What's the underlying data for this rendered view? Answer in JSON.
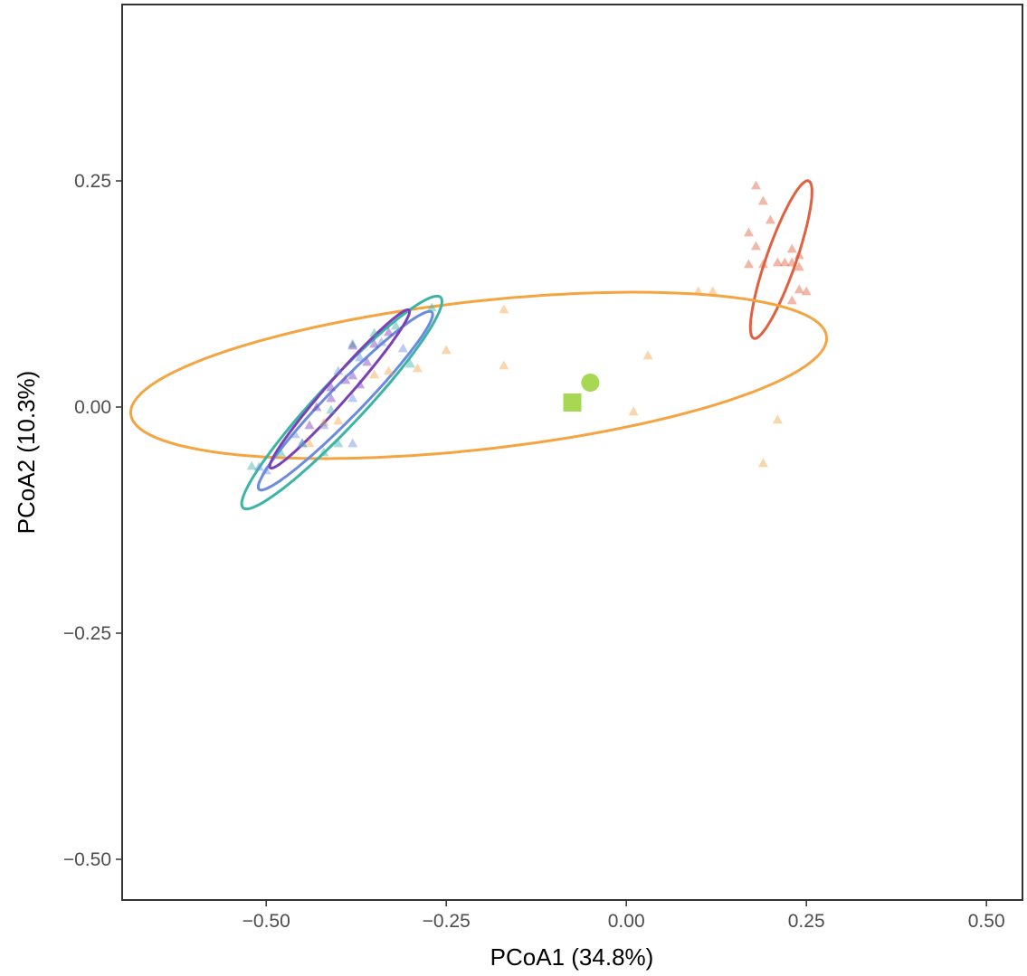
{
  "chart_data": {
    "type": "scatter",
    "title": "",
    "xlabel": "PCoA1 (34.8%)",
    "ylabel": "PCoA2 (10.3%)",
    "xlim": [
      -0.7,
      0.55
    ],
    "ylim": [
      -0.545,
      0.445
    ],
    "x_ticks": [
      {
        "value": -0.5,
        "label": "−0.50"
      },
      {
        "value": -0.25,
        "label": "−0.25"
      },
      {
        "value": 0.0,
        "label": "0.00"
      },
      {
        "value": 0.25,
        "label": "0.25"
      },
      {
        "value": 0.5,
        "label": "0.50"
      }
    ],
    "y_ticks": [
      {
        "value": 0.25,
        "label": "0.25"
      },
      {
        "value": 0.0,
        "label": "0.00"
      },
      {
        "value": -0.25,
        "label": "−0.25"
      },
      {
        "value": -0.5,
        "label": "−0.50"
      }
    ],
    "grid": false,
    "legend": "none",
    "marker_shape": "triangle",
    "series": [
      {
        "color": "#e0603f",
        "points": [
          [
            0.18,
            0.245
          ],
          [
            0.19,
            0.228
          ],
          [
            0.2,
            0.207
          ],
          [
            0.17,
            0.193
          ],
          [
            0.18,
            0.178
          ],
          [
            0.23,
            0.175
          ],
          [
            0.24,
            0.168
          ],
          [
            0.21,
            0.16
          ],
          [
            0.22,
            0.16
          ],
          [
            0.23,
            0.16
          ],
          [
            0.24,
            0.155
          ],
          [
            0.17,
            0.158
          ],
          [
            0.19,
            0.158
          ],
          [
            0.24,
            0.13
          ],
          [
            0.25,
            0.128
          ],
          [
            0.23,
            0.118
          ]
        ],
        "ellipse": {
          "cx": 0.215,
          "cy": 0.163,
          "rx": 0.095,
          "ry": 0.02,
          "angle_deg": 66
        }
      },
      {
        "color": "#f5a442",
        "points": [
          [
            0.1,
            0.128
          ],
          [
            0.12,
            0.128
          ],
          [
            -0.17,
            0.108
          ],
          [
            -0.25,
            0.063
          ],
          [
            -0.17,
            0.046
          ],
          [
            0.03,
            0.057
          ],
          [
            -0.29,
            0.043
          ],
          [
            -0.33,
            0.04
          ],
          [
            -0.35,
            0.036
          ],
          [
            -0.4,
            -0.015
          ],
          [
            -0.42,
            -0.017
          ],
          [
            0.01,
            -0.005
          ],
          [
            0.21,
            -0.014
          ],
          [
            0.19,
            -0.062
          ],
          [
            -0.44,
            -0.04
          ]
        ],
        "ellipse": {
          "cx": -0.205,
          "cy": 0.035,
          "rx": 0.485,
          "ry": 0.082,
          "angle_deg": 5
        }
      },
      {
        "color": "#3bb4a5",
        "points": [
          [
            -0.27,
            0.11
          ],
          [
            -0.32,
            0.09
          ],
          [
            -0.35,
            0.082
          ],
          [
            -0.3,
            0.048
          ],
          [
            -0.38,
            0.07
          ],
          [
            -0.41,
            -0.003
          ],
          [
            -0.45,
            -0.04
          ],
          [
            -0.48,
            -0.05
          ],
          [
            -0.52,
            -0.065
          ],
          [
            -0.42,
            -0.05
          ],
          [
            -0.4,
            -0.04
          ]
        ],
        "ellipse": {
          "cx": -0.395,
          "cy": 0.005,
          "rx": 0.18,
          "ry": 0.028,
          "angle_deg": 40
        }
      },
      {
        "color": "#6b8be0",
        "points": [
          [
            -0.34,
            0.072
          ],
          [
            -0.31,
            0.065
          ],
          [
            -0.37,
            0.055
          ],
          [
            -0.4,
            0.04
          ],
          [
            -0.38,
            0.01
          ],
          [
            -0.42,
            -0.02
          ],
          [
            -0.45,
            -0.04
          ],
          [
            -0.5,
            -0.07
          ],
          [
            -0.51,
            -0.066
          ],
          [
            -0.38,
            -0.04
          ],
          [
            -0.46,
            -0.03
          ]
        ],
        "ellipse": {
          "cx": -0.39,
          "cy": 0.007,
          "rx": 0.155,
          "ry": 0.02,
          "angle_deg": 39
        }
      },
      {
        "color": "#7b3fb8",
        "points": [
          [
            -0.38,
            0.068
          ],
          [
            -0.35,
            0.07
          ],
          [
            -0.36,
            0.05
          ],
          [
            -0.38,
            0.035
          ],
          [
            -0.39,
            0.03
          ],
          [
            -0.37,
            0.025
          ],
          [
            -0.41,
            0.01
          ],
          [
            -0.43,
            0.0
          ],
          [
            -0.44,
            -0.02
          ],
          [
            -0.41,
            0.022
          ],
          [
            -0.33,
            0.083
          ]
        ],
        "ellipse": {
          "cx": -0.398,
          "cy": 0.02,
          "rx": 0.13,
          "ry": 0.014,
          "angle_deg": 42
        }
      }
    ],
    "centroids": [
      {
        "shape": "circle",
        "color": "#a6d854",
        "x": -0.05,
        "y": 0.027
      },
      {
        "shape": "square",
        "color": "#a6d854",
        "x": -0.075,
        "y": 0.005
      }
    ]
  }
}
